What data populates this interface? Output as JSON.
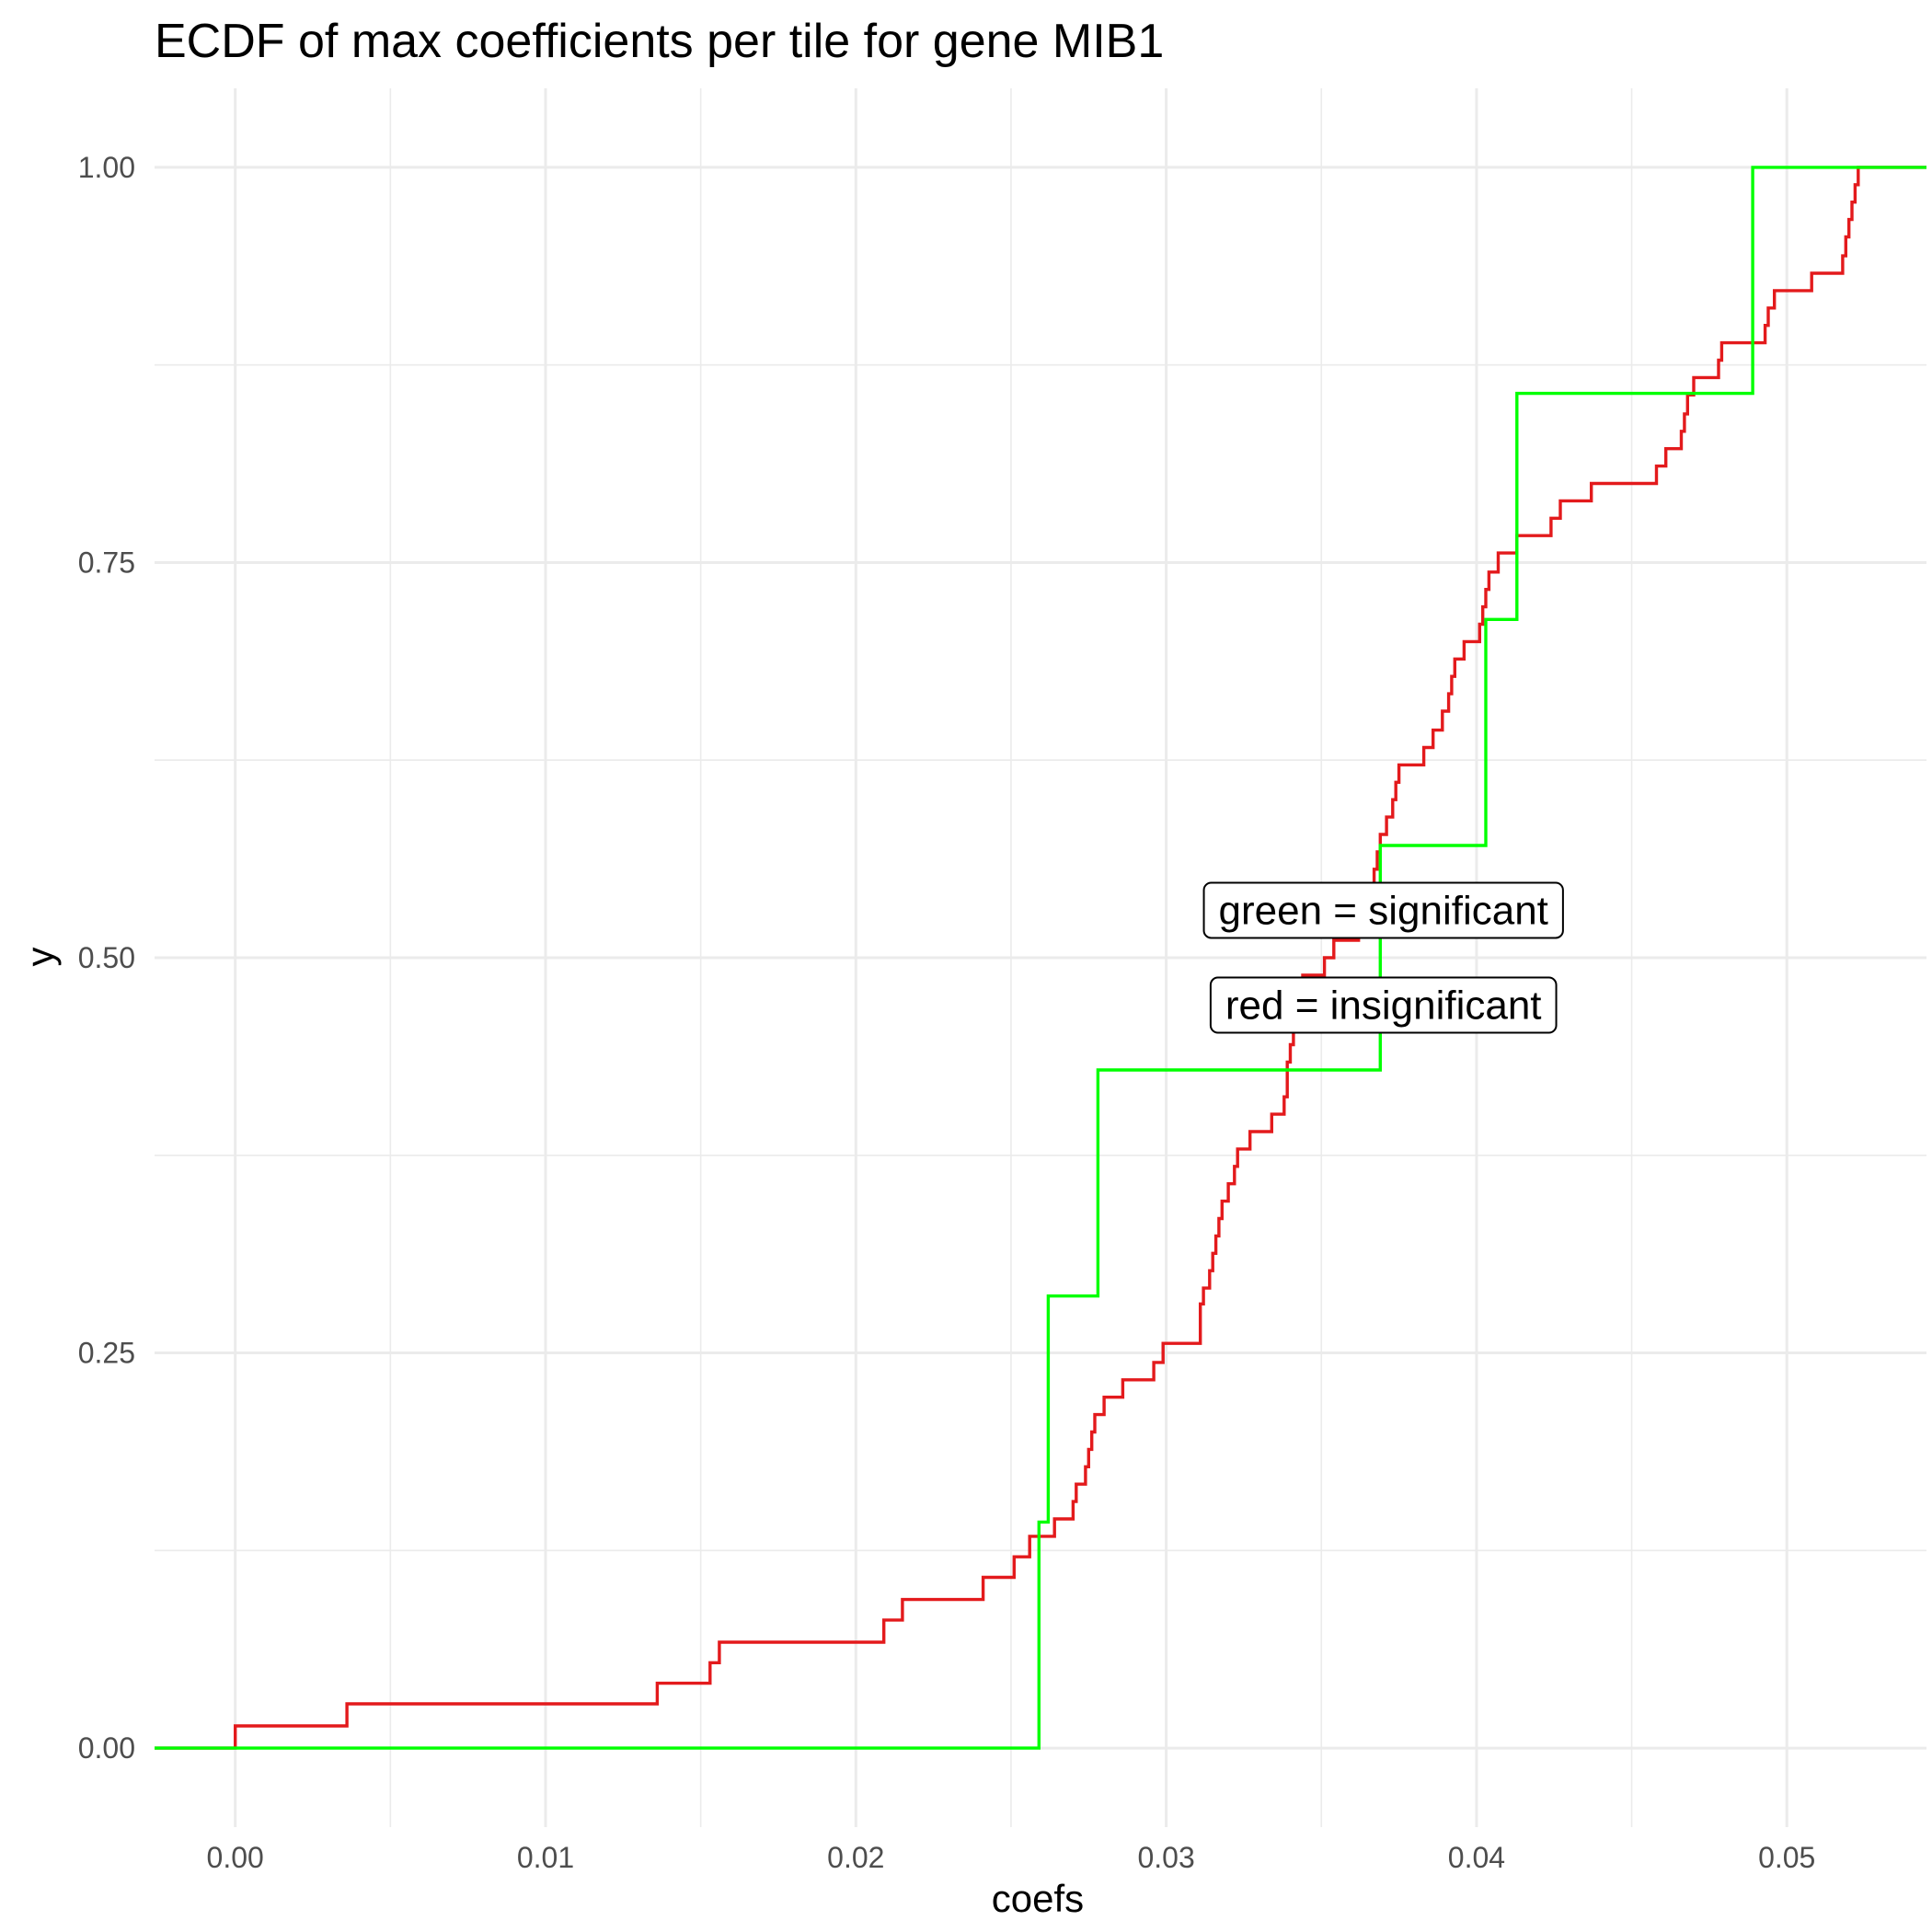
{
  "chart_data": {
    "type": "line",
    "title": "ECDF of max coefficients per tile for gene MIB1",
    "xlabel": "coefs",
    "ylabel": "y",
    "xlim": [
      -0.0026,
      0.0545
    ],
    "ylim": [
      -0.05,
      1.05
    ],
    "x_ticks": [
      0.0,
      0.01,
      0.02,
      0.03,
      0.04,
      0.05
    ],
    "x_tick_labels": [
      "0.00",
      "0.01",
      "0.02",
      "0.03",
      "0.04",
      "0.05"
    ],
    "y_ticks": [
      0.0,
      0.25,
      0.5,
      0.75,
      1.0
    ],
    "y_tick_labels": [
      "0.00",
      "0.25",
      "0.50",
      "0.75",
      "1.00"
    ],
    "grid": true,
    "step": true,
    "series": [
      {
        "name": "insignificant",
        "color": "#e31a1c",
        "points": [
          [
            -0.0026,
            0.0
          ],
          [
            0.0,
            0.014
          ],
          [
            0.0036,
            0.028
          ],
          [
            0.0136,
            0.041
          ],
          [
            0.0153,
            0.054
          ],
          [
            0.0156,
            0.067
          ],
          [
            0.0209,
            0.081
          ],
          [
            0.0215,
            0.094
          ],
          [
            0.0241,
            0.108
          ],
          [
            0.0251,
            0.121
          ],
          [
            0.0256,
            0.134
          ],
          [
            0.0264,
            0.145
          ],
          [
            0.027,
            0.156
          ],
          [
            0.0271,
            0.167
          ],
          [
            0.0274,
            0.178
          ],
          [
            0.0275,
            0.189
          ],
          [
            0.0276,
            0.2
          ],
          [
            0.0277,
            0.211
          ],
          [
            0.028,
            0.222
          ],
          [
            0.0286,
            0.233
          ],
          [
            0.0296,
            0.244
          ],
          [
            0.0299,
            0.256
          ],
          [
            0.0311,
            0.281
          ],
          [
            0.0312,
            0.291
          ],
          [
            0.0314,
            0.302
          ],
          [
            0.0315,
            0.313
          ],
          [
            0.0316,
            0.324
          ],
          [
            0.0317,
            0.335
          ],
          [
            0.0318,
            0.346
          ],
          [
            0.032,
            0.357
          ],
          [
            0.0322,
            0.368
          ],
          [
            0.0323,
            0.379
          ],
          [
            0.0327,
            0.39
          ],
          [
            0.0334,
            0.401
          ],
          [
            0.0338,
            0.412
          ],
          [
            0.0339,
            0.434
          ],
          [
            0.034,
            0.445
          ],
          [
            0.0341,
            0.456
          ],
          [
            0.0342,
            0.467
          ],
          [
            0.0343,
            0.478
          ],
          [
            0.0344,
            0.489
          ],
          [
            0.0351,
            0.5
          ],
          [
            0.0354,
            0.511
          ],
          [
            0.0362,
            0.522
          ],
          [
            0.0365,
            0.533
          ],
          [
            0.0367,
            0.556
          ],
          [
            0.0368,
            0.567
          ],
          [
            0.0369,
            0.578
          ],
          [
            0.0371,
            0.589
          ],
          [
            0.0373,
            0.6
          ],
          [
            0.0374,
            0.611
          ],
          [
            0.0375,
            0.622
          ],
          [
            0.0383,
            0.633
          ],
          [
            0.0386,
            0.644
          ],
          [
            0.0389,
            0.656
          ],
          [
            0.0391,
            0.667
          ],
          [
            0.0392,
            0.678
          ],
          [
            0.0393,
            0.689
          ],
          [
            0.0396,
            0.7
          ],
          [
            0.0401,
            0.711
          ],
          [
            0.0402,
            0.722
          ],
          [
            0.0403,
            0.733
          ],
          [
            0.0404,
            0.744
          ],
          [
            0.0407,
            0.756
          ],
          [
            0.0413,
            0.767
          ],
          [
            0.0424,
            0.778
          ],
          [
            0.0427,
            0.789
          ],
          [
            0.0437,
            0.8
          ],
          [
            0.0458,
            0.811
          ],
          [
            0.0461,
            0.822
          ],
          [
            0.0466,
            0.833
          ],
          [
            0.0467,
            0.844
          ],
          [
            0.0468,
            0.856
          ],
          [
            0.047,
            0.867
          ],
          [
            0.0478,
            0.878
          ],
          [
            0.0479,
            0.889
          ],
          [
            0.0493,
            0.9
          ],
          [
            0.0494,
            0.911
          ],
          [
            0.0496,
            0.922
          ],
          [
            0.0508,
            0.933
          ],
          [
            0.0518,
            0.944
          ],
          [
            0.0519,
            0.956
          ],
          [
            0.052,
            0.967
          ],
          [
            0.0521,
            0.978
          ],
          [
            0.0522,
            0.989
          ],
          [
            0.0523,
            1.0
          ],
          [
            0.0545,
            1.0
          ]
        ]
      },
      {
        "name": "significant",
        "color": "#00ff00",
        "points": [
          [
            -0.0026,
            0.0
          ],
          [
            0.0259,
            0.143
          ],
          [
            0.0262,
            0.286
          ],
          [
            0.0278,
            0.429
          ],
          [
            0.0369,
            0.571
          ],
          [
            0.0403,
            0.714
          ],
          [
            0.0413,
            0.857
          ],
          [
            0.0489,
            1.0
          ],
          [
            0.0545,
            1.0
          ]
        ]
      }
    ],
    "annotations": [
      {
        "text": "green = significant",
        "x": 0.037,
        "y": 0.53
      },
      {
        "text": "red = insignificant",
        "x": 0.037,
        "y": 0.47
      }
    ]
  }
}
